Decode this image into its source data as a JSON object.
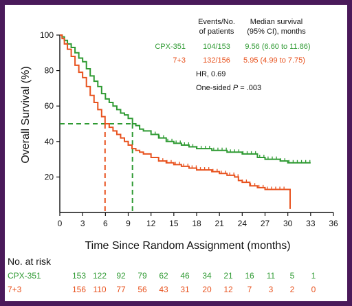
{
  "chart_data": {
    "type": "line",
    "subtype": "kaplan-meier",
    "xlabel": "Time Since Random Assignment (months)",
    "ylabel": "Overall Survival (%)",
    "xlim": [
      0,
      36
    ],
    "ylim": [
      0,
      100
    ],
    "xticks": [
      "0",
      "3",
      "6",
      "9",
      "12",
      "15",
      "18",
      "21",
      "24",
      "27",
      "30",
      "33",
      "36"
    ],
    "yticks": [
      "20",
      "40",
      "60",
      "80",
      "100"
    ],
    "grid": false,
    "legend_placement": "top-right",
    "table_header": {
      "events_line1": "Events/No.",
      "events_line2": "of patients",
      "median_line1": "Median survival",
      "median_line2": "(95% CI), months"
    },
    "series": [
      {
        "name": "CPX-351",
        "color": "#2e9a32",
        "events": "104/153",
        "median": "9.56 (6.60 to 11.86)",
        "median_value": 9.56,
        "points": [
          [
            0,
            100
          ],
          [
            0.3,
            99
          ],
          [
            0.6,
            97
          ],
          [
            1,
            95
          ],
          [
            1.5,
            93
          ],
          [
            2,
            90
          ],
          [
            2.5,
            87
          ],
          [
            3,
            85
          ],
          [
            3.5,
            81
          ],
          [
            4,
            77
          ],
          [
            4.5,
            74
          ],
          [
            5,
            71
          ],
          [
            5.5,
            67
          ],
          [
            6,
            64
          ],
          [
            6.5,
            62
          ],
          [
            7,
            60
          ],
          [
            7.5,
            58
          ],
          [
            8,
            56
          ],
          [
            8.5,
            55
          ],
          [
            9,
            53
          ],
          [
            9.56,
            50
          ],
          [
            10,
            49
          ],
          [
            10.5,
            47
          ],
          [
            11,
            46
          ],
          [
            12,
            44
          ],
          [
            13,
            42
          ],
          [
            14,
            40
          ],
          [
            15,
            39
          ],
          [
            16,
            38
          ],
          [
            17,
            37
          ],
          [
            18,
            36
          ],
          [
            19,
            36
          ],
          [
            20,
            35
          ],
          [
            21,
            35
          ],
          [
            22,
            34
          ],
          [
            23,
            34
          ],
          [
            24,
            33
          ],
          [
            25,
            33
          ],
          [
            26,
            31
          ],
          [
            27,
            30
          ],
          [
            28,
            30
          ],
          [
            29,
            29
          ],
          [
            30,
            28
          ],
          [
            31,
            28
          ],
          [
            32,
            28
          ],
          [
            33,
            28
          ]
        ]
      },
      {
        "name": "7+3",
        "color": "#e8521e",
        "events": "132/156",
        "median": "5.95 (4.99 to 7.75)",
        "median_value": 5.95,
        "points": [
          [
            0,
            100
          ],
          [
            0.3,
            98
          ],
          [
            0.6,
            95
          ],
          [
            1,
            92
          ],
          [
            1.5,
            88
          ],
          [
            2,
            83
          ],
          [
            2.5,
            79
          ],
          [
            3,
            76
          ],
          [
            3.5,
            71
          ],
          [
            4,
            66
          ],
          [
            4.5,
            62
          ],
          [
            5,
            58
          ],
          [
            5.5,
            54
          ],
          [
            5.95,
            50
          ],
          [
            6.5,
            48
          ],
          [
            7,
            46
          ],
          [
            7.5,
            44
          ],
          [
            8,
            42
          ],
          [
            8.5,
            40
          ],
          [
            9,
            38
          ],
          [
            9.5,
            36
          ],
          [
            10,
            35
          ],
          [
            10.5,
            34
          ],
          [
            11,
            33
          ],
          [
            12,
            31
          ],
          [
            13,
            29
          ],
          [
            14,
            28
          ],
          [
            15,
            27
          ],
          [
            16,
            26
          ],
          [
            17,
            25
          ],
          [
            18,
            24
          ],
          [
            19,
            24
          ],
          [
            20,
            23
          ],
          [
            21,
            22
          ],
          [
            22,
            21
          ],
          [
            23,
            20
          ],
          [
            23.5,
            18
          ],
          [
            24,
            17
          ],
          [
            25,
            15
          ],
          [
            26,
            14
          ],
          [
            27,
            13
          ],
          [
            28,
            13
          ],
          [
            29,
            13
          ],
          [
            30.3,
            13
          ],
          [
            30.3,
            2
          ]
        ]
      }
    ],
    "annotations": {
      "hr": "HR, 0.69",
      "p_prefix": "One-sided ",
      "p_symbol": "P",
      "p_suffix": " = .003"
    },
    "risk_table": {
      "title": "No. at risk",
      "rows": [
        {
          "name": "CPX-351",
          "color": "#2e9a32",
          "values": [
            "153",
            "122",
            "92",
            "79",
            "62",
            "46",
            "34",
            "21",
            "16",
            "11",
            "5",
            "1"
          ]
        },
        {
          "name": "7+3",
          "color": "#e8521e",
          "values": [
            "156",
            "110",
            "77",
            "56",
            "43",
            "31",
            "20",
            "12",
            "7",
            "3",
            "2",
            "0"
          ]
        }
      ]
    }
  }
}
